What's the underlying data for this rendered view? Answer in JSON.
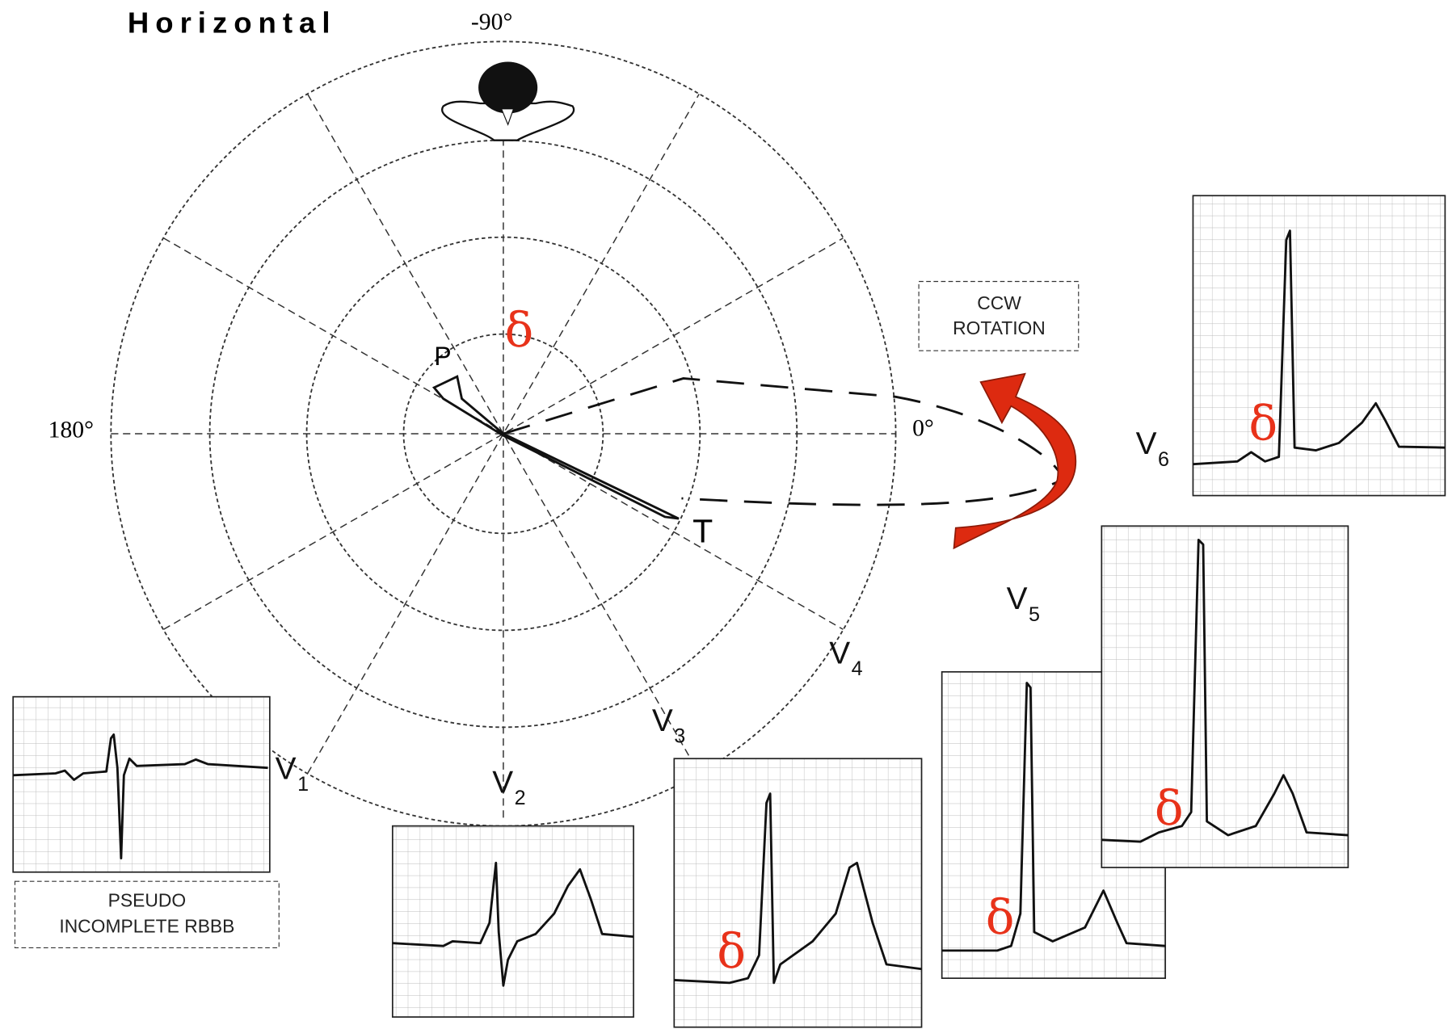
{
  "header": {
    "title": "Horizontal"
  },
  "axis_labels": {
    "top": "-90°",
    "left": "180°",
    "right": "0°"
  },
  "loop_labels": {
    "start": "P",
    "end": "T"
  },
  "delta_labels": [
    "δ",
    "δ",
    "δ",
    "δ",
    "δ"
  ],
  "leads": [
    {
      "name": "V",
      "index": "1"
    },
    {
      "name": "V",
      "index": "2"
    },
    {
      "name": "V",
      "index": "3"
    },
    {
      "name": "V",
      "index": "4"
    },
    {
      "name": "V",
      "index": "5"
    },
    {
      "name": "V",
      "index": "6"
    }
  ],
  "notes": {
    "rotation": [
      "CCW",
      "ROTATION"
    ],
    "v1": [
      "PSEUDO",
      "INCOMPLETE RBBB"
    ]
  }
}
